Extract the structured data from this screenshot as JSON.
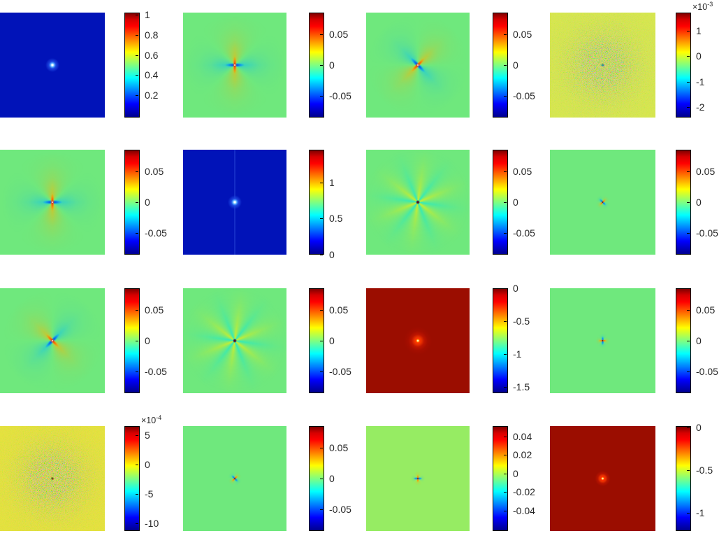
{
  "figure": {
    "background": "#ffffff",
    "label_color": "#262626"
  },
  "chart_data": {
    "type": "heatmap",
    "layout": "4x4 grid of square image plots, each with its own vertical jet colorbar on the right",
    "colormap": "jet",
    "rows": 4,
    "cols": 4,
    "panels": [
      {
        "id": "r1c1",
        "row": 1,
        "col": 1,
        "pattern": "peak-blue",
        "size": "large",
        "rotation": 0,
        "background": "#0113b8",
        "description": "uniform near-zero dark-blue field with a small bright peak at the center",
        "colorbar": {
          "range": [
            -0.02,
            1.02
          ],
          "ticks": [
            1,
            0.8,
            0.6,
            0.4,
            0.2
          ],
          "labels": [
            "1",
            "0.8",
            "0.6",
            "0.4",
            "0.2"
          ],
          "exponent": null
        }
      },
      {
        "id": "r1c2",
        "row": 1,
        "col": 2,
        "pattern": "clover",
        "size": "large",
        "rotation": 0,
        "background": "#6fe87d",
        "description": "green zero field with quadrupole lobes: warm lobes vertical, cool lobes horizontal",
        "colorbar": {
          "range": [
            -0.086,
            0.086
          ],
          "ticks": [
            0.05,
            0,
            -0.05
          ],
          "labels": [
            "0.05",
            "0",
            "-0.05"
          ],
          "exponent": null
        }
      },
      {
        "id": "r1c3",
        "row": 1,
        "col": 3,
        "pattern": "clover",
        "size": "large",
        "rotation": 45,
        "background": "#6fe87d",
        "description": "green zero field with diagonal quadrupole lobes (warm along NE-SW)",
        "colorbar": {
          "range": [
            -0.086,
            0.086
          ],
          "ticks": [
            0.05,
            0,
            -0.05
          ],
          "labels": [
            "0.05",
            "0",
            "-0.05"
          ],
          "exponent": null
        }
      },
      {
        "id": "r1c4",
        "row": 1,
        "col": 4,
        "pattern": "noise",
        "size": "large",
        "rotation": 0,
        "background": "#d8e84d",
        "dot": "teal",
        "description": "yellow-green speckle noise, denser toward the center, tiny dark spot at center",
        "colorbar": {
          "range": [
            -2.4,
            1.7
          ],
          "ticks": [
            1,
            0,
            -1,
            -2
          ],
          "labels": [
            "1",
            "0",
            "-1",
            "-2"
          ],
          "exponent": "-3"
        }
      },
      {
        "id": "r2c1",
        "row": 2,
        "col": 1,
        "pattern": "clover",
        "size": "large",
        "rotation": 0,
        "background": "#6fe87d",
        "description": "green zero field with quadrupole lobes: warm vertical, cool horizontal",
        "colorbar": {
          "range": [
            -0.086,
            0.086
          ],
          "ticks": [
            0.05,
            0,
            -0.05
          ],
          "labels": [
            "0.05",
            "0",
            "-0.05"
          ],
          "exponent": null
        }
      },
      {
        "id": "r2c2",
        "row": 2,
        "col": 2,
        "pattern": "peak-blue",
        "size": "large",
        "rotation": 0,
        "background": "#0113b8",
        "line": "vertical",
        "description": "dark-blue field with bright central peak and faint vertical streak",
        "colorbar": {
          "range": [
            0,
            1.45
          ],
          "ticks": [
            1,
            0.5,
            0
          ],
          "labels": [
            "1",
            "0.5",
            "0"
          ],
          "exponent": null
        }
      },
      {
        "id": "r2c3",
        "row": 2,
        "col": 3,
        "pattern": "star6",
        "size": "large",
        "rotation": 0,
        "background": "#6fe87d",
        "description": "green zero field with six-lobed star of alternating warm and cool rays",
        "colorbar": {
          "range": [
            -0.086,
            0.086
          ],
          "ticks": [
            0.05,
            0,
            -0.05
          ],
          "labels": [
            "0.05",
            "0",
            "-0.05"
          ],
          "exponent": null
        }
      },
      {
        "id": "r2c4",
        "row": 2,
        "col": 4,
        "pattern": "clover",
        "size": "small",
        "rotation": 45,
        "background": "#6fe87d",
        "description": "green zero field with tiny compact diagonal quadrupole at center",
        "colorbar": {
          "range": [
            -0.086,
            0.086
          ],
          "ticks": [
            0.05,
            0,
            -0.05
          ],
          "labels": [
            "0.05",
            "0",
            "-0.05"
          ],
          "exponent": null
        }
      },
      {
        "id": "r3c1",
        "row": 3,
        "col": 1,
        "pattern": "clover",
        "size": "large",
        "rotation": -45,
        "background": "#6fe87d",
        "description": "green zero field with diagonal quadrupole lobes (warm along NW-SE)",
        "colorbar": {
          "range": [
            -0.086,
            0.086
          ],
          "ticks": [
            0.05,
            0,
            -0.05
          ],
          "labels": [
            "0.05",
            "0",
            "-0.05"
          ],
          "exponent": null
        }
      },
      {
        "id": "r3c2",
        "row": 3,
        "col": 2,
        "pattern": "star6",
        "size": "large",
        "rotation": 0,
        "background": "#6fe87d",
        "description": "green zero field with six-lobed star of alternating warm and cool rays",
        "colorbar": {
          "range": [
            -0.086,
            0.086
          ],
          "ticks": [
            0.05,
            0,
            -0.05
          ],
          "labels": [
            "0.05",
            "0",
            "-0.05"
          ],
          "exponent": null
        }
      },
      {
        "id": "r3c3",
        "row": 3,
        "col": 3,
        "pattern": "peak-red",
        "size": "large",
        "rotation": 0,
        "background": "#9b0d00",
        "description": "uniform dark-red field (values near 0 of a negative range) with small bright spot at center",
        "colorbar": {
          "range": [
            -1.6,
            0.005
          ],
          "ticks": [
            0,
            -0.5,
            -1,
            -1.5
          ],
          "labels": [
            "0",
            "-0.5",
            "-1",
            "-1.5"
          ],
          "exponent": null
        }
      },
      {
        "id": "r3c4",
        "row": 3,
        "col": 4,
        "pattern": "clover",
        "size": "small",
        "rotation": 90,
        "background": "#6fe87d",
        "description": "green zero field with tiny compact quadrupole (cool vertical, warm horizontal)",
        "colorbar": {
          "range": [
            -0.086,
            0.086
          ],
          "ticks": [
            0.05,
            0,
            -0.05
          ],
          "labels": [
            "0.05",
            "0",
            "-0.05"
          ],
          "exponent": null
        }
      },
      {
        "id": "r4c1",
        "row": 4,
        "col": 1,
        "pattern": "noise",
        "size": "large",
        "rotation": 0,
        "background": "#e6e33c",
        "dot": "dark",
        "description": "yellow speckle noise, denser toward the center, dark spot at center",
        "colorbar": {
          "range": [
            -11.3,
            6.5
          ],
          "ticks": [
            5,
            0,
            -5,
            -10
          ],
          "labels": [
            "5",
            "0",
            "-5",
            "-10"
          ],
          "exponent": "-4"
        }
      },
      {
        "id": "r4c2",
        "row": 4,
        "col": 2,
        "pattern": "clover",
        "size": "small",
        "rotation": 45,
        "background": "#6fe87d",
        "description": "green zero field with tiny compact diagonal quadrupole at center",
        "colorbar": {
          "range": [
            -0.086,
            0.086
          ],
          "ticks": [
            0.05,
            0,
            -0.05
          ],
          "labels": [
            "0.05",
            "0",
            "-0.05"
          ],
          "exponent": null
        }
      },
      {
        "id": "r4c3",
        "row": 4,
        "col": 3,
        "pattern": "clover",
        "size": "small",
        "rotation": 0,
        "background": "#96ec63",
        "description": "yellow-green zero field with tiny compact quadrupole at center",
        "colorbar": {
          "range": [
            -0.062,
            0.051
          ],
          "ticks": [
            0.04,
            0.02,
            0,
            -0.02,
            -0.04
          ],
          "labels": [
            "0.04",
            "0.02",
            "0",
            "-0.02",
            "-0.04"
          ],
          "exponent": null
        }
      },
      {
        "id": "r4c4",
        "row": 4,
        "col": 4,
        "pattern": "peak-red",
        "size": "small",
        "rotation": 0,
        "background": "#9b0d00",
        "description": "uniform dark-red field with small bright spot at center",
        "colorbar": {
          "range": [
            -1.21,
            0.02
          ],
          "ticks": [
            0,
            -0.5,
            -1
          ],
          "labels": [
            "0",
            "-0.5",
            "-1"
          ],
          "exponent": null
        }
      }
    ]
  }
}
